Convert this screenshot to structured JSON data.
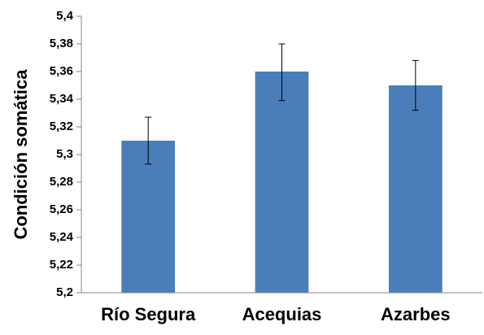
{
  "chart_data": {
    "type": "bar",
    "categories": [
      "Río Segura",
      "Acequias",
      "Azarbes"
    ],
    "values": [
      5.31,
      5.36,
      5.35
    ],
    "error_bars": [
      {
        "low": 5.293,
        "high": 5.327
      },
      {
        "low": 5.339,
        "high": 5.38
      },
      {
        "low": 5.332,
        "high": 5.368
      }
    ],
    "ylabel": "Condición somática",
    "xlabel": "",
    "ylim": [
      5.2,
      5.4
    ],
    "yticks": [
      5.2,
      5.22,
      5.24,
      5.26,
      5.28,
      5.3,
      5.32,
      5.34,
      5.36,
      5.38,
      5.4
    ],
    "ytick_labels": [
      "5,2",
      "5,22",
      "5,24",
      "5,26",
      "5,28",
      "5,3",
      "5,32",
      "5,34",
      "5,36",
      "5,38",
      "5,4"
    ],
    "bar_color": "#4a7ebb",
    "axis_color": "#868686",
    "grid": false,
    "legend": "none"
  }
}
